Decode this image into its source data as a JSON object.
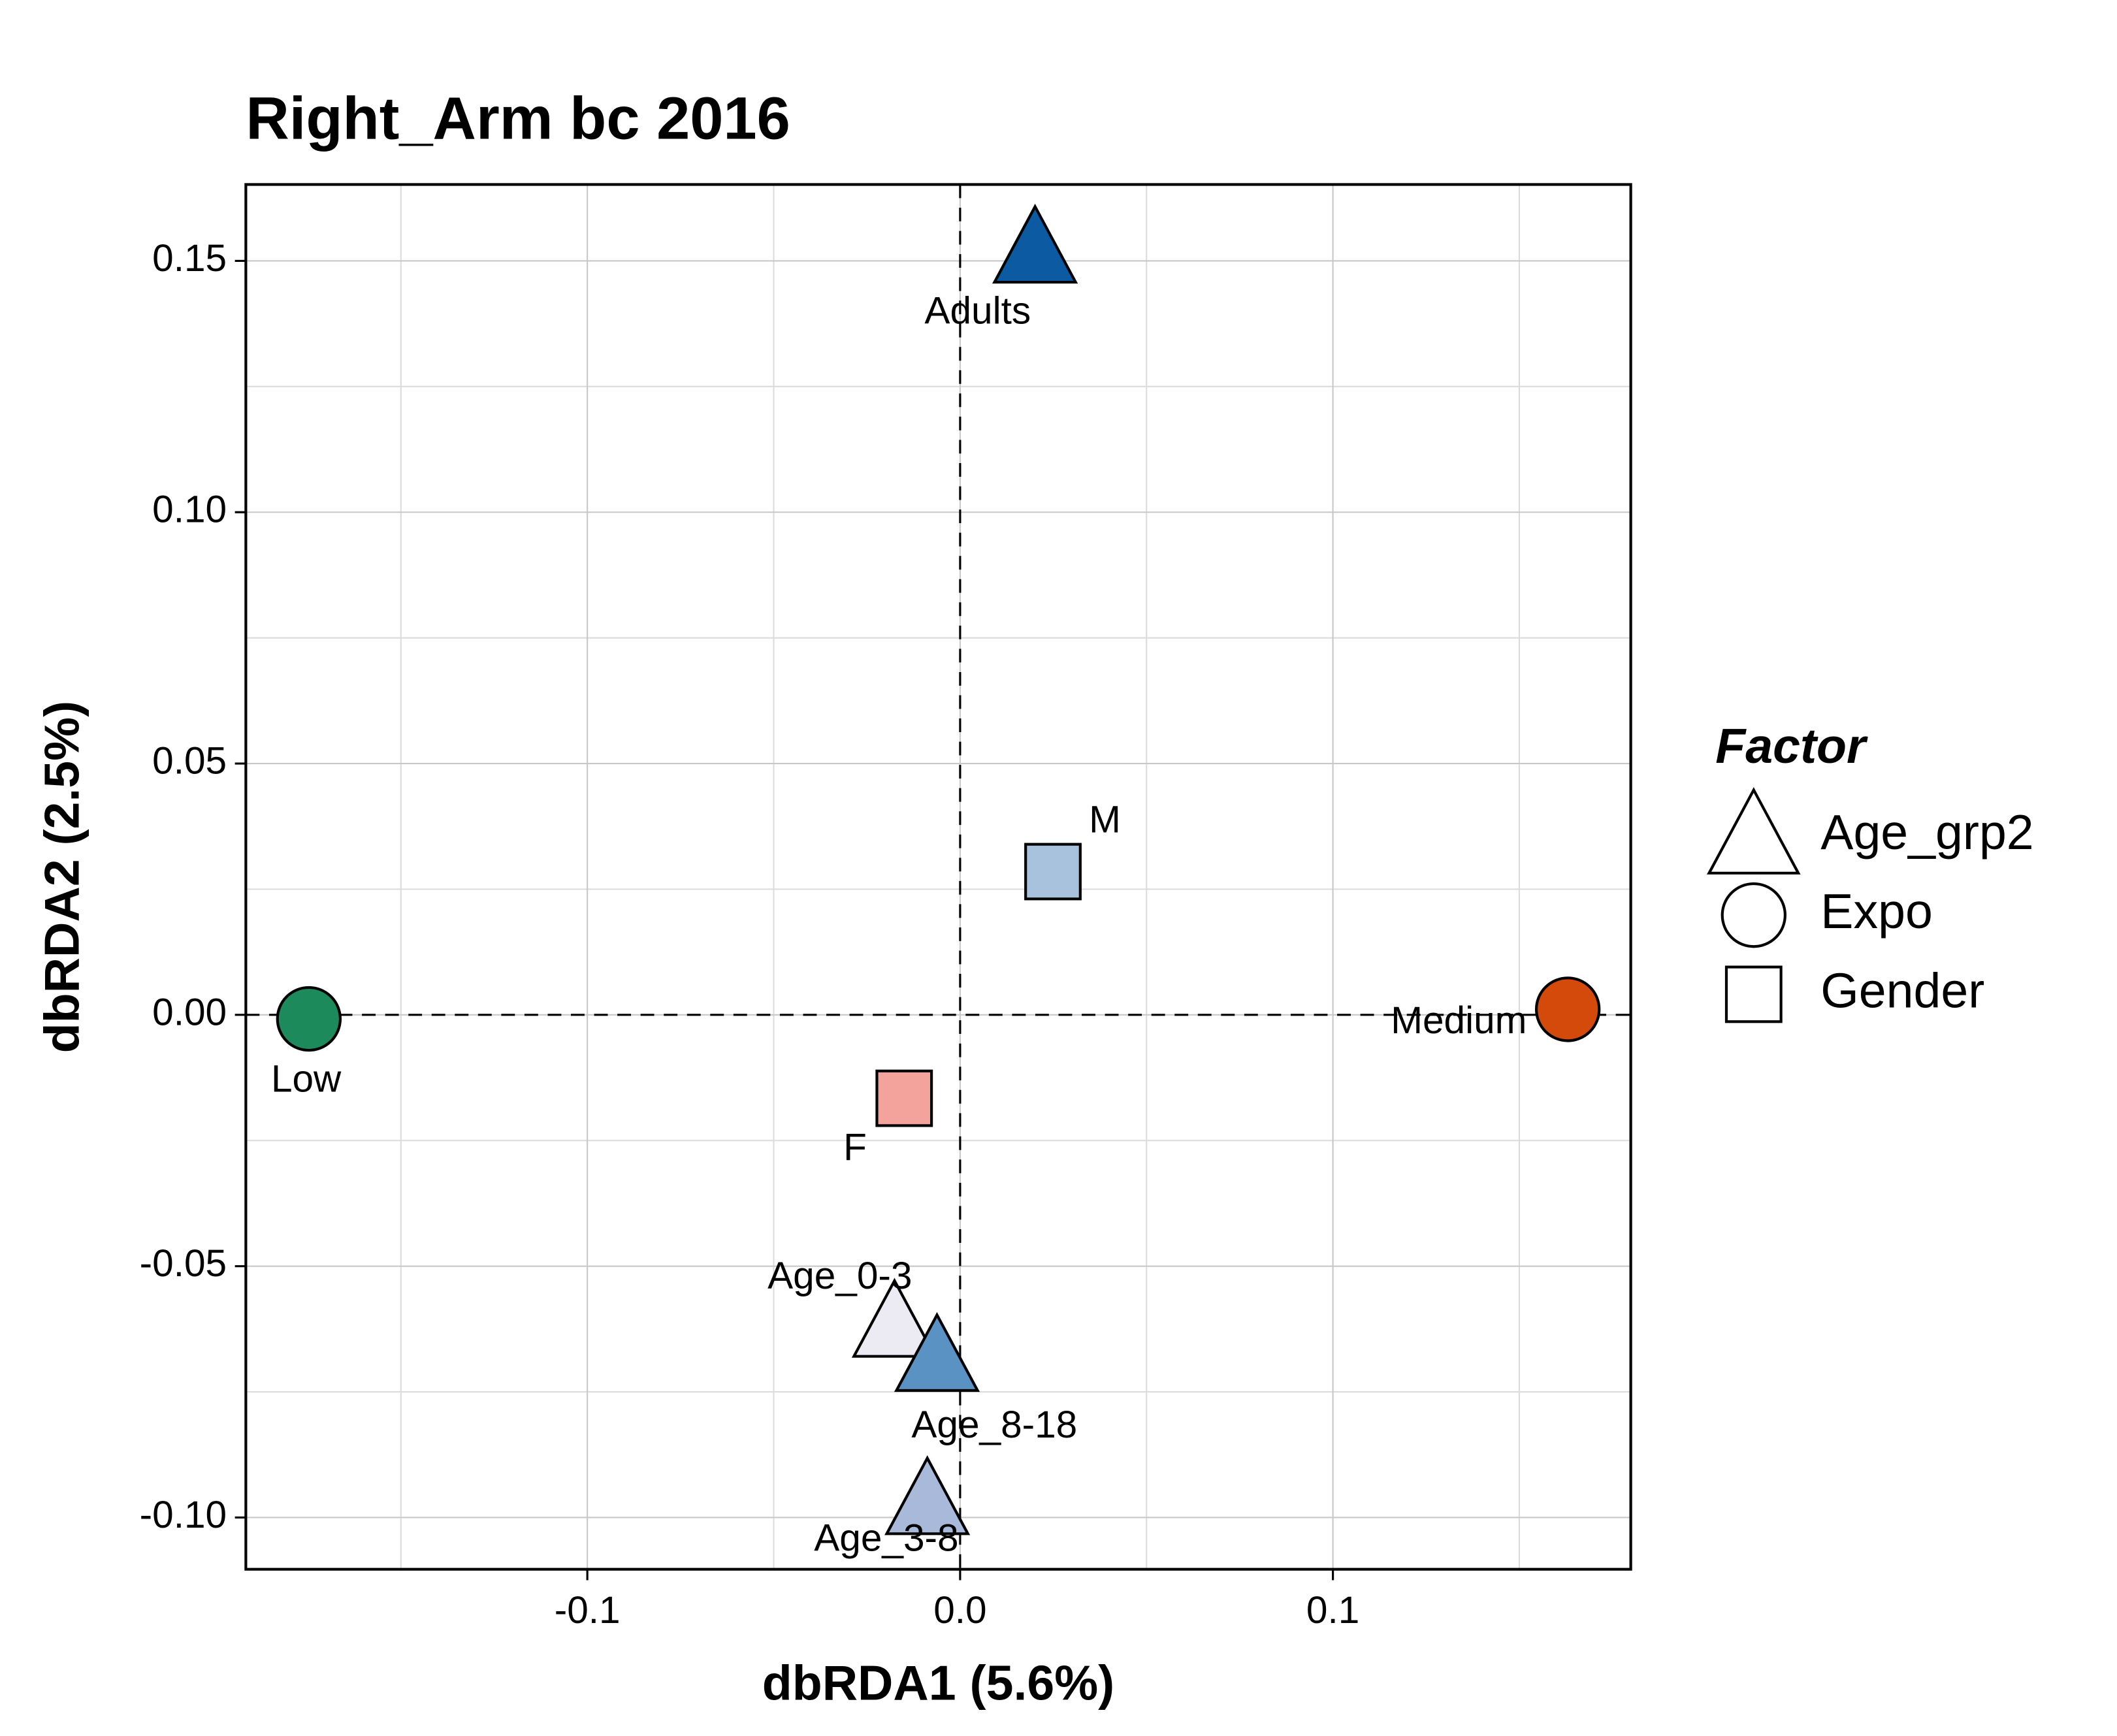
{
  "chart_data": {
    "type": "scatter",
    "title": "Right_Arm bc 2016",
    "x_label": "dbRDA1 (5.6%)",
    "y_label": "dbRDA2 (2.5%)",
    "xlim": [
      -0.1916,
      0.1799
    ],
    "ylim": [
      -0.1103,
      0.1652
    ],
    "xticks": [
      -0.1,
      {
        "value": 0,
        "label": "0.0"
      },
      0.1
    ],
    "yticks": [
      {
        "value": -0.1,
        "label": "-0.10"
      },
      -0.05,
      {
        "value": 0,
        "label": "0.00"
      },
      0.05,
      {
        "value": 0.1,
        "label": "0.10"
      },
      0.15
    ],
    "grid": true,
    "reference_lines": {
      "x": 0,
      "y": 0
    },
    "legend_title": "Factor",
    "legend_position": "right",
    "series": [
      {
        "name": "Age_grp2",
        "shape": "triangle",
        "labels": [
          "Adults",
          "Age_0-3",
          "Age_8-18",
          "Age_3-8"
        ],
        "colors": [
          "#0b5aa2",
          "#ecebf4",
          "#5b92c4",
          "#a9b9da"
        ],
        "x": [
          0.0201,
          -0.0176,
          -0.0062,
          -0.0088
        ],
        "values": [
          0.152,
          -0.0617,
          -0.0685,
          -0.097
        ]
      },
      {
        "name": "Expo",
        "shape": "circle",
        "labels": [
          "Low",
          "Medium"
        ],
        "colors": [
          "#1d8a5c",
          "#d44a0b"
        ],
        "x": [
          -0.1747,
          0.163
        ],
        "values": [
          -0.0008,
          0.0011
        ]
      },
      {
        "name": "Gender",
        "shape": "square",
        "labels": [
          "M",
          "F"
        ],
        "colors": [
          "#a8c2dd",
          "#f4a29c"
        ],
        "x": [
          0.0249,
          -0.015
        ],
        "values": [
          0.0285,
          -0.0166
        ]
      }
    ]
  }
}
